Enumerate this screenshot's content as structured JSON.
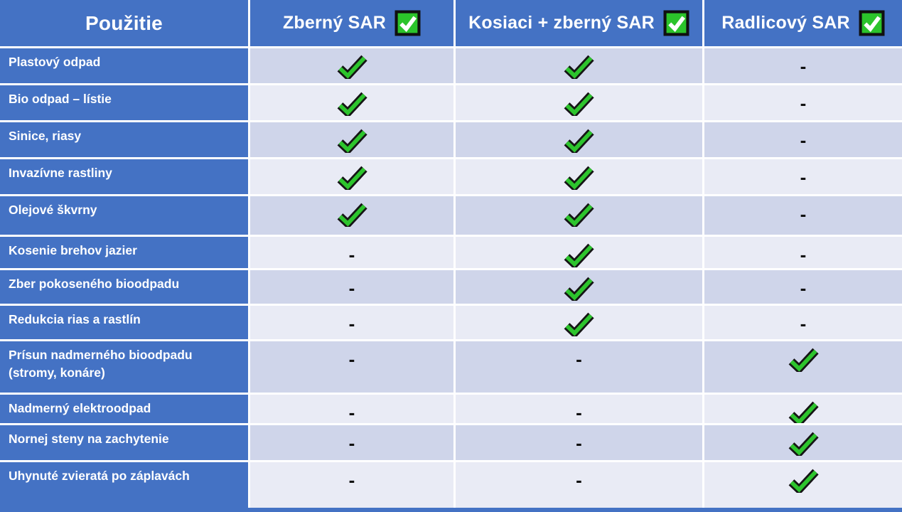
{
  "table": {
    "header": {
      "usage_label": "Použitie",
      "columns": [
        {
          "label": "Zberný SAR",
          "icon": "checked-checkbox-icon"
        },
        {
          "label": "Kosiaci + zberný SAR",
          "icon": "checked-checkbox-icon"
        },
        {
          "label": "Radlicový SAR",
          "icon": "checked-checkbox-icon"
        }
      ]
    },
    "rows": [
      {
        "label": "Plastový odpad",
        "cells": [
          "check",
          "check",
          "dash"
        ]
      },
      {
        "label": "Bio odpad – lístie",
        "cells": [
          "check",
          "check",
          "dash"
        ]
      },
      {
        "label": "Sinice, riasy",
        "cells": [
          "check",
          "check",
          "dash"
        ]
      },
      {
        "label": "Invazívne rastliny",
        "cells": [
          "check",
          "check",
          "dash"
        ]
      },
      {
        "label": "Olejové škvrny",
        "cells": [
          "check",
          "check",
          "dash"
        ]
      },
      {
        "label": "Kosenie brehov jazier",
        "cells": [
          "dash",
          "check",
          "dash"
        ]
      },
      {
        "label": "Zber pokoseného bioodpadu",
        "cells": [
          "dash",
          "check",
          "dash"
        ]
      },
      {
        "label": "Redukcia rias a rastlín",
        "cells": [
          "dash",
          "check",
          "dash"
        ]
      },
      {
        "label": "Prísun nadmerného bioodpadu\n(stromy, konáre)",
        "cells": [
          "dash",
          "dash",
          "check"
        ]
      },
      {
        "label": "Nadmerný elektroodpad",
        "cells": [
          "dash",
          "dash",
          "check"
        ]
      },
      {
        "label": "Nornej steny na zachytenie",
        "cells": [
          "dash",
          "dash",
          "check"
        ]
      },
      {
        "label": "Uhynuté zvieratá po záplavách",
        "cells": [
          "dash",
          "dash",
          "check"
        ]
      }
    ],
    "symbols": {
      "check": "check-icon",
      "dash": "-"
    },
    "colors": {
      "header_blue": "#4472C4",
      "row_band_dark": "#CFD5EA",
      "row_band_light": "#E9EBF5",
      "check_green": "#2DC42D",
      "checkbox_green": "#2BC42B",
      "gridline_white": "#FFFFFF",
      "dash_black": "#111111",
      "header_text": "#FFFFFF"
    }
  },
  "chart_data": {
    "type": "table",
    "title": "",
    "columns": [
      "Použitie",
      "Zberný SAR",
      "Kosiaci + zberný SAR",
      "Radlicový SAR"
    ],
    "rows": [
      [
        "Plastový odpad",
        true,
        true,
        false
      ],
      [
        "Bio odpad – lístie",
        true,
        true,
        false
      ],
      [
        "Sinice, riasy",
        true,
        true,
        false
      ],
      [
        "Invazívne rastliny",
        true,
        true,
        false
      ],
      [
        "Olejové škvrny",
        true,
        true,
        false
      ],
      [
        "Kosenie brehov jazier",
        false,
        true,
        false
      ],
      [
        "Zber pokoseného bioodpadu",
        false,
        true,
        false
      ],
      [
        "Redukcia rias a rastlín",
        false,
        true,
        false
      ],
      [
        "Prísun nadmerného bioodpadu (stromy, konáre)",
        false,
        false,
        true
      ],
      [
        "Nadmerný elektroodpad",
        false,
        false,
        true
      ],
      [
        "Nornej steny na zachytenie",
        false,
        false,
        true
      ],
      [
        "Uhynuté zvieratá po záplavách",
        false,
        false,
        true
      ]
    ],
    "legend": "true = green check mark, false = dash"
  }
}
